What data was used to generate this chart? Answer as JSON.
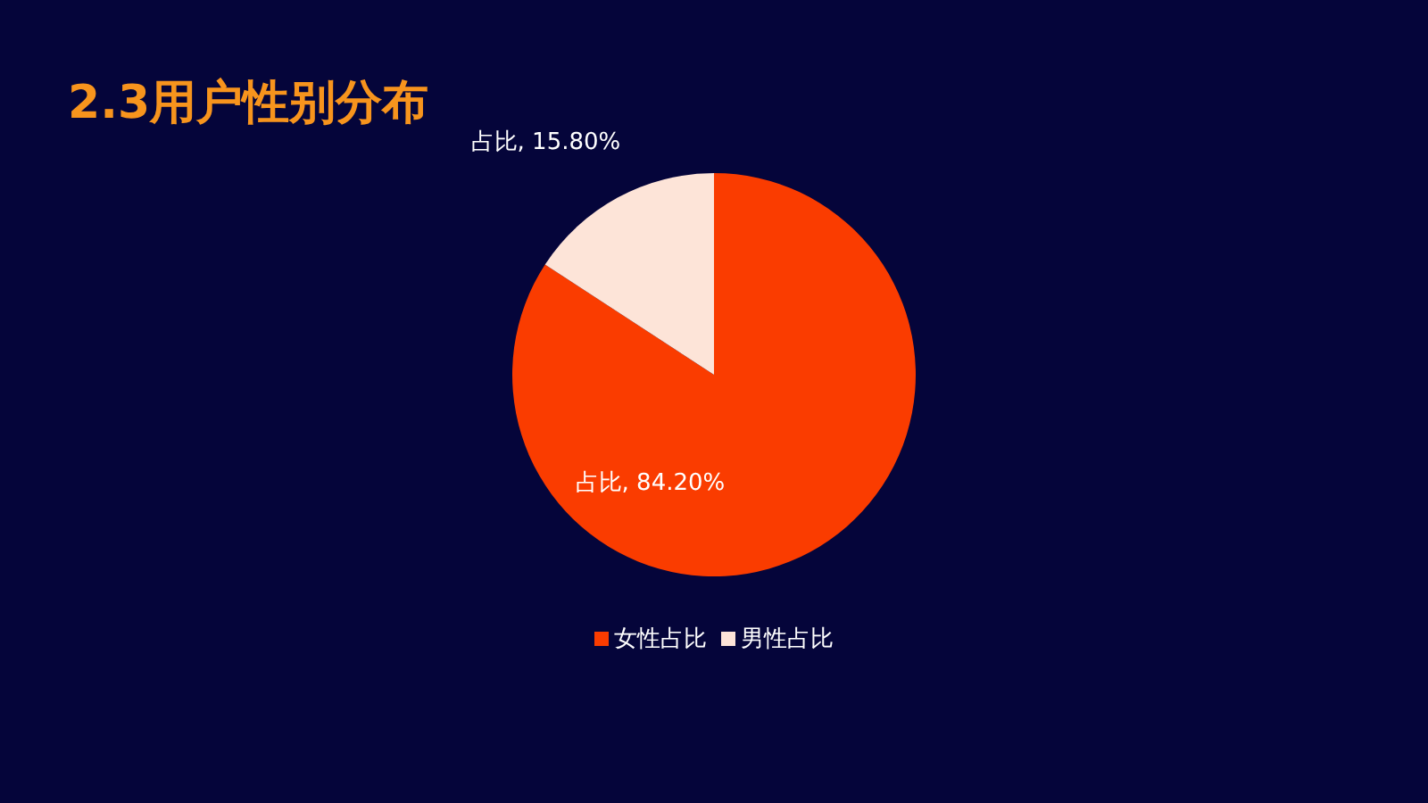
{
  "chart_data": {
    "type": "pie",
    "title": "2.3用户性别分布",
    "categories": [
      "女性占比",
      "男性占比"
    ],
    "values": [
      84.2,
      15.8
    ],
    "colors": [
      "#fa3c00",
      "#fde4d8"
    ],
    "value_labels": [
      "占比, 84.20%",
      "占比, 15.80%"
    ],
    "legend": "bottom"
  }
}
